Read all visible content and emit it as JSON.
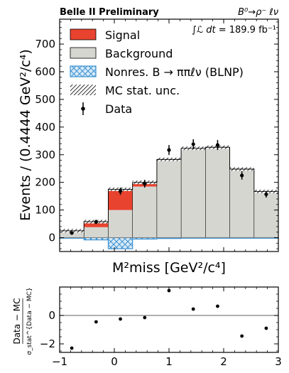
{
  "header": {
    "experiment": "Belle II Preliminary",
    "decay": "B⁰→ρ⁻ ℓν",
    "lumi_integral": "∫ℒ dt",
    "lumi_value": " = 189.9 fb⁻¹"
  },
  "legend": {
    "signal": "Signal",
    "background": "Background",
    "nonres": "Nonres. B → ππℓν (BLNP)",
    "mcunc": "MC stat. unc.",
    "data": "Data"
  },
  "colors": {
    "signal": "#e8432f",
    "background": "#d6d6d1",
    "nonres_edge": "#3b93d3",
    "nonres_fill": "#d8e9f6",
    "data": "#000000",
    "zero_line": "#7f7f7f"
  },
  "chart_data": [
    {
      "type": "bar",
      "panel": "main",
      "xlabel": "M²miss [GeV²/c⁴]",
      "ylabel": "Events / (0.4444 GeV²/c⁴)",
      "xlim": [
        -1,
        3
      ],
      "ylim": [
        -50,
        790
      ],
      "x_ticks_labeled": false,
      "y_ticks": [
        0,
        100,
        200,
        300,
        400,
        500,
        600,
        700
      ],
      "y_tick_labels": [
        "0",
        "100",
        "200",
        "300",
        "400",
        "500",
        "600",
        "700"
      ],
      "bin_edges": [
        -1,
        -0.5556,
        -0.1111,
        0.3333,
        0.7778,
        1.2222,
        1.6667,
        2.1111,
        2.5556,
        3.0
      ],
      "series": [
        {
          "name": "Background",
          "values": [
            22,
            38,
            100,
            185,
            278,
            318,
            322,
            245,
            165
          ]
        },
        {
          "name": "Signal",
          "values": [
            3,
            20,
            75,
            15,
            5,
            5,
            5,
            3,
            2
          ]
        },
        {
          "name": "Nonres. B → ππℓν (BLNP)",
          "values": [
            -2,
            -8,
            -40,
            -5,
            -3,
            -2,
            -2,
            -2,
            -2
          ]
        },
        {
          "name": "Data",
          "values": [
            17,
            57,
            168,
            195,
            317,
            338,
            335,
            225,
            157
          ],
          "errors": [
            5,
            8,
            13,
            14,
            18,
            18,
            18,
            15,
            12
          ]
        }
      ]
    },
    {
      "type": "scatter",
      "panel": "ratio",
      "ylabel_top": "Data − MC",
      "ylabel_bottom": "σ_stat^{Data − MC}",
      "xlim": [
        -1,
        3
      ],
      "ylim": [
        -2.6,
        2.0
      ],
      "x_ticks": [
        -1,
        0,
        1,
        2,
        3
      ],
      "x_tick_labels": [
        "−1",
        "0",
        "1",
        "2",
        "3"
      ],
      "y_ticks": [
        -2,
        0
      ],
      "y_tick_labels": [
        "−2",
        "0"
      ],
      "x": [
        -0.778,
        -0.333,
        0.111,
        0.556,
        1.0,
        1.444,
        1.889,
        2.333,
        2.778
      ],
      "values": [
        -2.3,
        -0.45,
        -0.25,
        -0.15,
        1.75,
        0.45,
        0.65,
        -1.45,
        -0.9
      ]
    }
  ]
}
